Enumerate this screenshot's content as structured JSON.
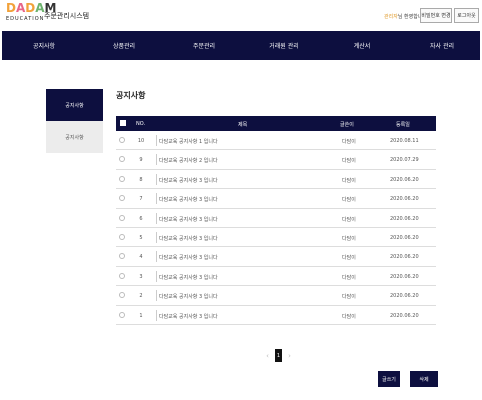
{
  "header": {
    "logo_letters": [
      "D",
      "A",
      "D",
      "A",
      "M"
    ],
    "logo_visible": "DADAM",
    "logo_sub": "EDUCATION",
    "app_title": "주문관리시스템",
    "user_name": "관리자",
    "user_suffix": "님 환영합니다.",
    "change_password_label": "비밀번호 변경",
    "logout_label": "로그아웃"
  },
  "nav": {
    "items": [
      "공지사항",
      "상품관리",
      "주문관리",
      "거래원 관리",
      "계산서",
      "자사 관리"
    ]
  },
  "sidebar": {
    "items": [
      {
        "label": "공지사항",
        "active": true
      },
      {
        "label": "공지사항",
        "active": false
      }
    ]
  },
  "main": {
    "title": "공지사항",
    "table": {
      "columns": [
        "NO.",
        "제목",
        "글쓴이",
        "등록일"
      ],
      "rows": [
        {
          "no": "10",
          "title": "다담교육 공지사항 1 입니다",
          "author": "다담이",
          "date": "2020.08.11"
        },
        {
          "no": "9",
          "title": "다담교육 공지사항 2 입니다",
          "author": "다담이",
          "date": "2020.07.29"
        },
        {
          "no": "8",
          "title": "다담교육 공지사항 3 입니다",
          "author": "다담이",
          "date": "2020.06.20"
        },
        {
          "no": "7",
          "title": "다담교육 공지사항 3 입니다",
          "author": "다담이",
          "date": "2020.06.20"
        },
        {
          "no": "6",
          "title": "다담교육 공지사항 3 입니다",
          "author": "다담이",
          "date": "2020.06.20"
        },
        {
          "no": "5",
          "title": "다담교육 공지사항 3 입니다",
          "author": "다담이",
          "date": "2020.06.20"
        },
        {
          "no": "4",
          "title": "다담교육 공지사항 3 입니다",
          "author": "다담이",
          "date": "2020.06.20"
        },
        {
          "no": "3",
          "title": "다담교육 공지사항 3 입니다",
          "author": "다담이",
          "date": "2020.06.20"
        },
        {
          "no": "2",
          "title": "다담교육 공지사항 3 입니다",
          "author": "다담이",
          "date": "2020.06.20"
        },
        {
          "no": "1",
          "title": "다담교육 공지사항 3 입니다",
          "author": "다담이",
          "date": "2020.06.20"
        }
      ]
    },
    "pagination": {
      "prev": "‹",
      "current": "1",
      "next": "›"
    },
    "actions": {
      "write_label": "글쓰기",
      "delete_label": "삭제"
    }
  },
  "colors": {
    "navy": "#0d0f3f",
    "accent_orange": "#e09a2a"
  }
}
